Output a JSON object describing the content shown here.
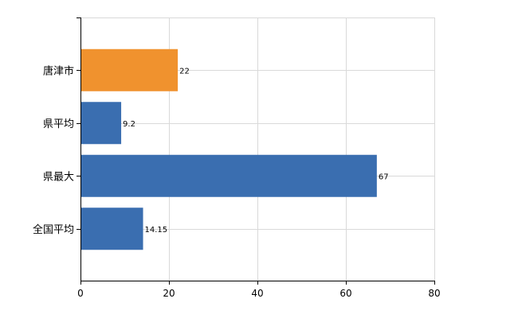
{
  "chart_data": {
    "type": "bar",
    "orientation": "horizontal",
    "categories": [
      "唐津市",
      "県平均",
      "県最大",
      "全国平均"
    ],
    "values": [
      22,
      9.2,
      67,
      14.15
    ],
    "value_labels": [
      "22",
      "9.2",
      "67",
      "14.15"
    ],
    "bar_colors": [
      "#f0922e",
      "#3a6eb0",
      "#3a6eb0",
      "#3a6eb0"
    ],
    "xlim": [
      0,
      80
    ],
    "xticks": [
      "0",
      "20",
      "40",
      "60",
      "80"
    ],
    "grid": true,
    "title": "",
    "xlabel": "",
    "ylabel": ""
  }
}
